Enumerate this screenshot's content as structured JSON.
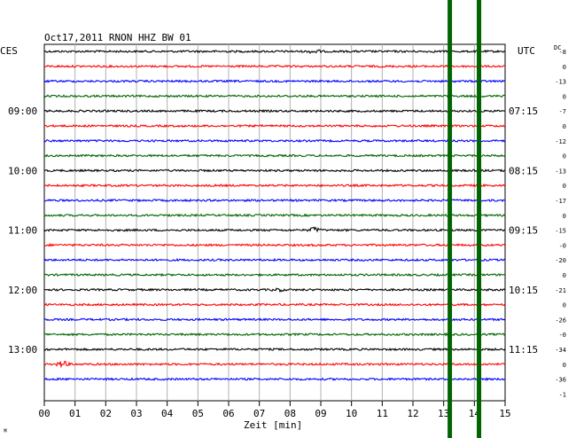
{
  "chart_data": {
    "type": "line",
    "title": "Oct17,2011   RNON HHZ BW 01",
    "left_timezone": "CES",
    "right_timezone": "UTC",
    "dc_label": "DC",
    "xlabel": "Zeit [min]",
    "xlim": [
      0,
      15
    ],
    "x_ticks": [
      "00",
      "01",
      "02",
      "03",
      "04",
      "05",
      "06",
      "07",
      "08",
      "09",
      "10",
      "11",
      "12",
      "13",
      "14",
      "15"
    ],
    "trace_colors": [
      "#000000",
      "#ff0000",
      "#0000ff",
      "#006400"
    ],
    "trace_count": 23,
    "left_hour_labels": [
      {
        "trace": 4,
        "text": "09:00"
      },
      {
        "trace": 8,
        "text": "10:00"
      },
      {
        "trace": 12,
        "text": "11:00"
      },
      {
        "trace": 16,
        "text": "12:00"
      },
      {
        "trace": 20,
        "text": "13:00"
      }
    ],
    "right_hour_labels": [
      {
        "trace": 4,
        "text": "07:15"
      },
      {
        "trace": 8,
        "text": "08:15"
      },
      {
        "trace": 12,
        "text": "09:15"
      },
      {
        "trace": 16,
        "text": "10:15"
      },
      {
        "trace": 20,
        "text": "11:15"
      }
    ],
    "dc_values": [
      "-8",
      "0",
      "-13",
      "0",
      "-7",
      "0",
      "-12",
      "0",
      "-13",
      "0",
      "-17",
      "0",
      "-15",
      "-0",
      "-20",
      "0",
      "-21",
      "0",
      "-26",
      "-0",
      "-34",
      "0",
      "-36",
      "-1"
    ],
    "events": [
      {
        "trace": 0,
        "minute": 8.8,
        "amplitude": 2.2
      },
      {
        "trace": 12,
        "minute": 8.8,
        "amplitude": 3.0
      },
      {
        "trace": 21,
        "minute": 0.6,
        "amplitude": 3.5
      },
      {
        "trace": 16,
        "minute": 7.6,
        "amplitude": 1.5
      }
    ],
    "marker_lines": [
      {
        "minute": 13.2,
        "color": "#006400"
      },
      {
        "minute": 14.15,
        "color": "#006400"
      }
    ],
    "corner_mark": "⌘"
  }
}
